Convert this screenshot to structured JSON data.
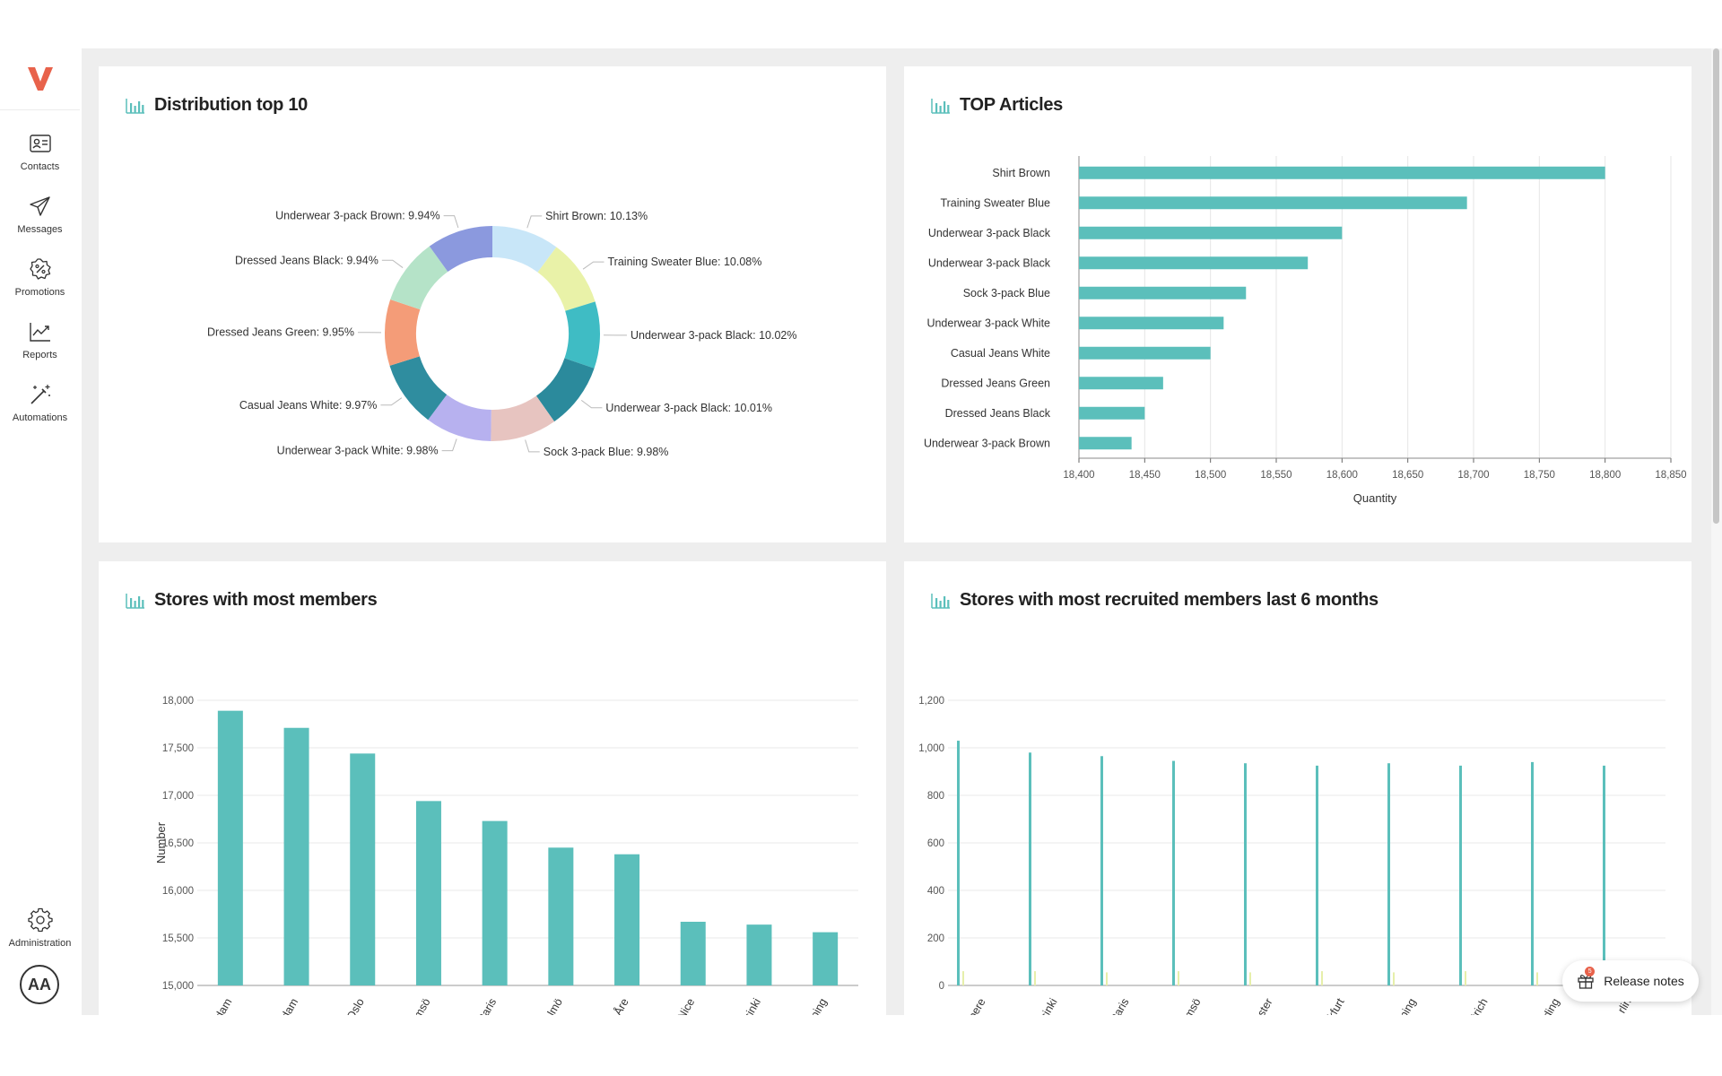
{
  "app": {
    "logo_letter": "V",
    "brand_color": "#e8624b",
    "accent_color": "#5bbfbb"
  },
  "sidebar": {
    "items": [
      {
        "label": "Contacts",
        "icon": "contacts-icon"
      },
      {
        "label": "Messages",
        "icon": "paper-plane-icon"
      },
      {
        "label": "Promotions",
        "icon": "percent-badge-icon"
      },
      {
        "label": "Reports",
        "icon": "trend-chart-icon"
      },
      {
        "label": "Automations",
        "icon": "magic-wand-icon"
      }
    ],
    "admin": {
      "label": "Administration",
      "icon": "gear-icon"
    },
    "avatar_initials": "AA"
  },
  "cards": {
    "distribution": {
      "title": "Distribution top 10"
    },
    "top_articles": {
      "title": "TOP Articles"
    },
    "stores_members": {
      "title": "Stores with most members"
    },
    "stores_recruited": {
      "title": "Stores with most recruited members last 6 months"
    }
  },
  "release_notes": {
    "label": "Release notes",
    "badge": "5",
    "icon": "gift-icon"
  },
  "chart_data": [
    {
      "type": "pie",
      "variant": "donut",
      "title": "Distribution top 10",
      "slices": [
        {
          "label": "Shirt Brown: 10.13%",
          "value": 10.13,
          "color": "#c8e6f8"
        },
        {
          "label": "Training Sweater Blue: 10.08%",
          "value": 10.08,
          "color": "#e9f2a8"
        },
        {
          "label": "Underwear 3-pack Black: 10.02%",
          "value": 10.02,
          "color": "#3fbcc4"
        },
        {
          "label": "Underwear 3-pack Black: 10.01%",
          "value": 10.01,
          "color": "#2b8a9c"
        },
        {
          "label": "Sock 3-pack Blue: 9.98%",
          "value": 9.98,
          "color": "#e7c4c0"
        },
        {
          "label": "Underwear 3-pack White: 9.98%",
          "value": 9.98,
          "color": "#b7b1ef"
        },
        {
          "label": "Casual Jeans White: 9.97%",
          "value": 9.97,
          "color": "#2f8d9f"
        },
        {
          "label": "Dressed Jeans Green: 9.95%",
          "value": 9.95,
          "color": "#f49c78"
        },
        {
          "label": "Dressed Jeans Black: 9.94%",
          "value": 9.94,
          "color": "#b5e3c8"
        },
        {
          "label": "Underwear 3-pack Brown: 9.94%",
          "value": 9.94,
          "color": "#8b99de"
        }
      ]
    },
    {
      "type": "bar",
      "orientation": "horizontal",
      "title": "TOP Articles",
      "xlabel": "Quantity",
      "ylabel": "",
      "xlim": [
        18400,
        18850
      ],
      "xticks": [
        "18,400",
        "18,450",
        "18,500",
        "18,550",
        "18,600",
        "18,650",
        "18,700",
        "18,750",
        "18,800",
        "18,850"
      ],
      "categories": [
        "Shirt Brown",
        "Training Sweater Blue",
        "Underwear 3-pack Black",
        "Underwear 3-pack Black",
        "Sock 3-pack Blue",
        "Underwear 3-pack White",
        "Casual Jeans White",
        "Dressed Jeans Green",
        "Dressed Jeans Black",
        "Underwear 3-pack Brown"
      ],
      "values": [
        18800,
        18695,
        18600,
        18574,
        18527,
        18510,
        18500,
        18464,
        18450,
        18440
      ],
      "color": "#5bbfbb",
      "grid": true
    },
    {
      "type": "bar",
      "title": "Stores with most members",
      "xlabel": "",
      "ylabel": "Number",
      "ylim": [
        15000,
        18000
      ],
      "yticks": [
        "15,000",
        "15,500",
        "16,000",
        "16,500",
        "17,000",
        "17,500",
        "18,000"
      ],
      "categories": [
        "Rotterdam",
        "Amsterdam",
        "Oslo",
        "Tromsö",
        "Paris",
        "Malmö",
        "Åre",
        "Nice",
        "Helsinki",
        "Norrköping"
      ],
      "values": [
        17890,
        17710,
        17440,
        16940,
        16730,
        16450,
        16380,
        15670,
        15640,
        15560
      ],
      "color": "#5bbfbb",
      "grid": true
    },
    {
      "type": "bar",
      "title": "Stores with most recruited members last 6 months",
      "xlabel": "",
      "ylabel": "",
      "ylim": [
        0,
        1200
      ],
      "yticks": [
        "0",
        "200",
        "400",
        "600",
        "800",
        "1,000",
        "1,200"
      ],
      "categories": [
        "Tampere",
        "Helsinki",
        "Paris",
        "Tromsö",
        "Manchester",
        "Frankfurt",
        "Norrköping",
        "Zürich",
        "Kolding",
        "rlin"
      ],
      "series": [
        {
          "values": [
            1030,
            980,
            965,
            945,
            935,
            925,
            935,
            925,
            940,
            925
          ],
          "color": "#5bbfbb"
        },
        {
          "values": [
            60,
            60,
            55,
            60,
            55,
            60,
            55,
            60,
            55,
            50
          ],
          "color": "#e6efaa"
        }
      ],
      "grid": true
    }
  ]
}
